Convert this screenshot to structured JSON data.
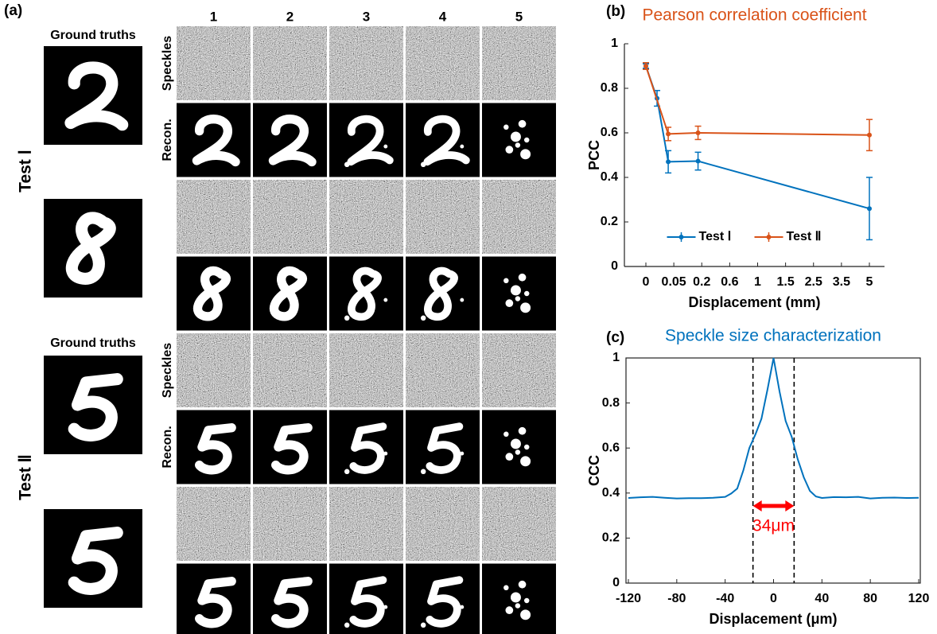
{
  "panel_a": {
    "label": "(a)",
    "column_labels": [
      "1",
      "2",
      "3",
      "4",
      "5"
    ],
    "groups": [
      {
        "name": "Test Ⅰ",
        "ground_truth_label": "Ground truths",
        "row_labels": [
          "Speckles",
          "Recon."
        ]
      },
      {
        "name": "Test Ⅱ",
        "ground_truth_label": "Ground truths",
        "row_labels": [
          "Speckles",
          "Recon."
        ]
      }
    ]
  },
  "chart_data": [
    {
      "panel_label": "(b)",
      "type": "line",
      "title": "Pearson correlation coefficient",
      "title_color": "#D95319",
      "xlabel": "Displacement (mm)",
      "ylabel": "PCC",
      "xscale": "piecewise",
      "xlim": [
        -0.04,
        5.8
      ],
      "xticks": [
        0,
        0.05,
        0.2,
        0.6,
        1,
        1.5,
        2.5,
        3.5,
        5
      ],
      "ylim": [
        0,
        1
      ],
      "yticks": [
        0,
        0.2,
        0.4,
        0.6,
        0.8,
        1
      ],
      "legend": "lower center",
      "box": false,
      "series": [
        {
          "name": "Test Ⅰ",
          "color": "#0072BD",
          "x": [
            0,
            0.02,
            0.04,
            0.18,
            5
          ],
          "values": [
            0.9,
            0.755,
            0.47,
            0.473,
            0.26
          ],
          "errors": [
            0.01,
            0.035,
            0.05,
            0.04,
            0.14
          ]
        },
        {
          "name": "Test Ⅱ",
          "color": "#D95319",
          "x": [
            0,
            0.04,
            0.18,
            5
          ],
          "values": [
            0.9,
            0.595,
            0.6,
            0.59
          ],
          "errors": [
            0.015,
            0.03,
            0.03,
            0.07
          ]
        }
      ]
    },
    {
      "panel_label": "(c)",
      "type": "line",
      "title": "Speckle size characterization",
      "title_color": "#0072BD",
      "xlabel": "Displacement (μm)",
      "ylabel": "CCC",
      "xlim": [
        -120,
        120
      ],
      "xticks": [
        -120,
        -80,
        -40,
        0,
        40,
        80,
        120
      ],
      "ylim": [
        0,
        1
      ],
      "yticks": [
        0,
        0.2,
        0.4,
        0.6,
        0.8,
        1
      ],
      "box": true,
      "series": [
        {
          "color": "#0072BD",
          "x": [
            -120,
            -110,
            -100,
            -90,
            -80,
            -70,
            -60,
            -50,
            -40,
            -35,
            -30,
            -25,
            -20,
            -15,
            -10,
            -5,
            0,
            5,
            10,
            15,
            20,
            25,
            30,
            35,
            40,
            50,
            60,
            70,
            80,
            90,
            100,
            110,
            120
          ],
          "values": [
            0.378,
            0.381,
            0.383,
            0.379,
            0.376,
            0.377,
            0.377,
            0.379,
            0.383,
            0.398,
            0.42,
            0.5,
            0.6,
            0.66,
            0.73,
            0.86,
            1.0,
            0.85,
            0.72,
            0.65,
            0.55,
            0.47,
            0.41,
            0.385,
            0.378,
            0.382,
            0.381,
            0.383,
            0.376,
            0.379,
            0.38,
            0.378,
            0.379
          ]
        }
      ],
      "vlines": [
        -17,
        17
      ],
      "annotation": {
        "text": "34μm",
        "color": "#ff0000"
      }
    }
  ]
}
